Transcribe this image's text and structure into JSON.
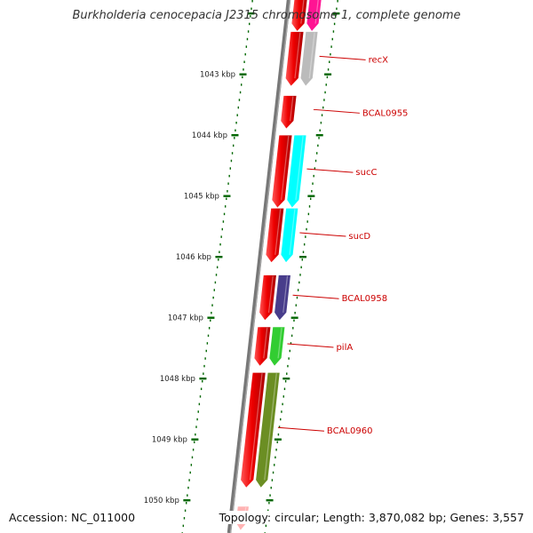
{
  "title": "Burkholderia cenocepacia J2315 chromosome 1, complete genome",
  "accession": "Accession: NC_011000",
  "topology": "Topology: circular; Length: 3,870,082 bp; Genes: 3,557",
  "colors": {
    "strand_red": "#ee0000",
    "backbone": "#777777",
    "tick_green": "#006600",
    "label_red": "#cc0000"
  },
  "scale": {
    "unit": "kbp",
    "ticks": [
      {
        "value": 1042,
        "label": ""
      },
      {
        "value": 1043,
        "label": "1043 kbp"
      },
      {
        "value": 1044,
        "label": "1044 kbp"
      },
      {
        "value": 1045,
        "label": "1045 kbp"
      },
      {
        "value": 1046,
        "label": "1046 kbp"
      },
      {
        "value": 1047,
        "label": "1047 kbp"
      },
      {
        "value": 1048,
        "label": "1048 kbp"
      },
      {
        "value": 1049,
        "label": "1049 kbp"
      },
      {
        "value": 1050,
        "label": "1050 kbp"
      }
    ]
  },
  "genes": [
    {
      "label": "",
      "start": 1041.6,
      "end": 1042.3,
      "color": "#ff1493"
    },
    {
      "label": "recX",
      "start": 1042.3,
      "end": 1043.2,
      "color": "#bbbbbb"
    },
    {
      "label": "BCAL0955",
      "start": 1043.35,
      "end": 1043.9,
      "color": ""
    },
    {
      "label": "sucC",
      "start": 1044.0,
      "end": 1045.2,
      "color": "#00ffff"
    },
    {
      "label": "sucD",
      "start": 1045.2,
      "end": 1046.1,
      "color": "#00ffff"
    },
    {
      "label": "BCAL0958",
      "start": 1046.3,
      "end": 1047.05,
      "color": "#483d8b"
    },
    {
      "label": "pilA",
      "start": 1047.15,
      "end": 1047.8,
      "color": "#32cd32"
    },
    {
      "label": "BCAL0960",
      "start": 1047.9,
      "end": 1049.8,
      "color": "#6b8e23"
    },
    {
      "label": "",
      "start": 1050.1,
      "end": 1050.5,
      "color": ""
    }
  ]
}
